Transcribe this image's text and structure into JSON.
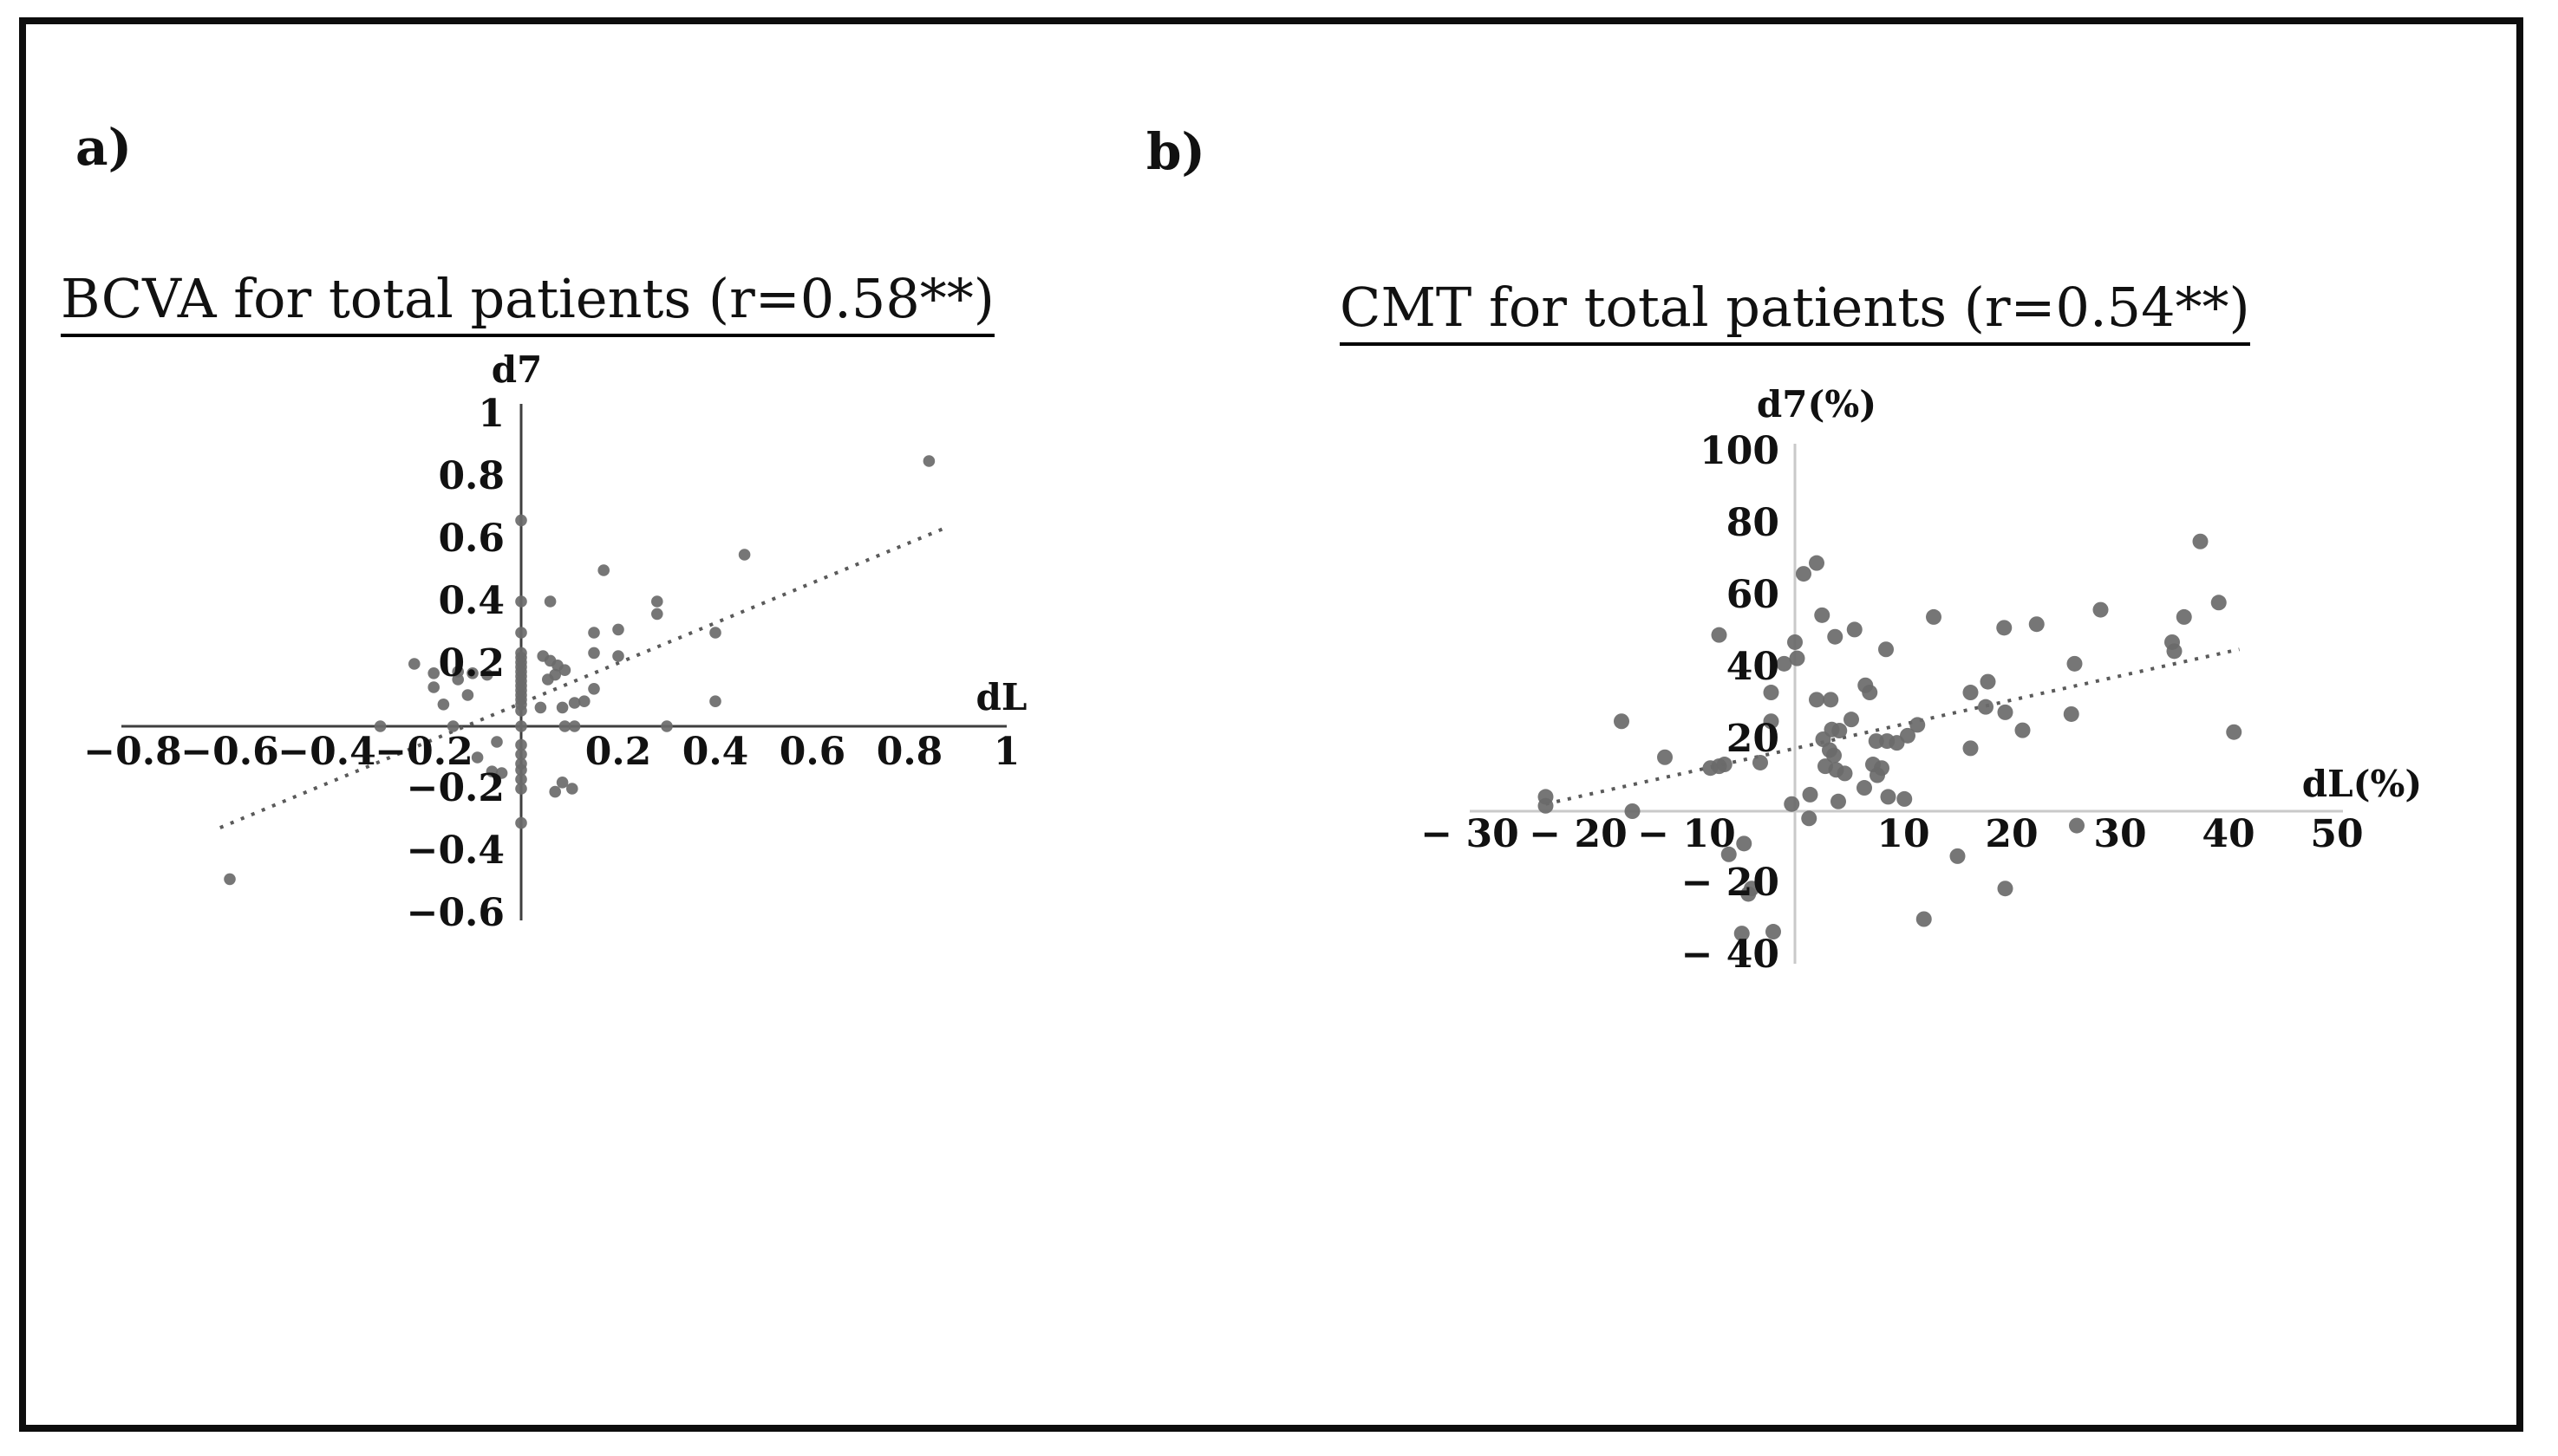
{
  "figure": {
    "background": "#ffffff",
    "border_color": "#0d0d0d"
  },
  "colors": {
    "point": "#6a6a6a",
    "trend": "#5a5a5a",
    "axis_a": "#3f3f3f",
    "axis_b": "#c9c9c9",
    "text": "#111111"
  },
  "chart_data": [
    {
      "type": "scatter",
      "panel_label": "a)",
      "title": "BCVA for total patients (r=0.58**)",
      "xlabel": "dL",
      "ylabel": "d7",
      "xlim": [
        -0.8,
        1
      ],
      "ylim": [
        -0.6,
        1
      ],
      "grid": false,
      "legend": "none",
      "x_ticks": [
        {
          "v": -0.8,
          "t": "−0.8"
        },
        {
          "v": -0.6,
          "t": "−0.6"
        },
        {
          "v": -0.4,
          "t": "−0.4"
        },
        {
          "v": -0.2,
          "t": "−0.2"
        },
        {
          "v": 0.2,
          "t": "0.2"
        },
        {
          "v": 0.4,
          "t": "0.4"
        },
        {
          "v": 0.6,
          "t": "0.6"
        },
        {
          "v": 0.8,
          "t": "0.8"
        },
        {
          "v": 1,
          "t": "1"
        }
      ],
      "y_ticks": [
        {
          "v": 1,
          "t": "1"
        },
        {
          "v": 0.8,
          "t": "0.8"
        },
        {
          "v": 0.6,
          "t": "0.6"
        },
        {
          "v": 0.4,
          "t": "0.4"
        },
        {
          "v": 0.2,
          "t": "0.2"
        },
        {
          "v": -0.2,
          "t": "−0.2"
        },
        {
          "v": -0.4,
          "t": "−0.4"
        },
        {
          "v": -0.6,
          "t": "−0.6"
        }
      ],
      "trendline": {
        "x1": -0.62,
        "y1": -0.325,
        "x2": 0.88,
        "y2": 0.64
      },
      "points": [
        [
          0.84,
          0.85
        ],
        [
          0.46,
          0.55
        ],
        [
          0.17,
          0.5
        ],
        [
          0.28,
          0.4
        ],
        [
          0.28,
          0.36
        ],
        [
          0.06,
          0.4
        ],
        [
          0.4,
          0.3
        ],
        [
          0.15,
          0.3
        ],
        [
          0.2,
          0.31
        ],
        [
          0.15,
          0.235
        ],
        [
          0.2,
          0.225
        ],
        [
          0.15,
          0.12
        ],
        [
          0.4,
          0.08
        ],
        [
          0.13,
          0.08
        ],
        [
          0.11,
          0.075
        ],
        [
          0.04,
          0.06
        ],
        [
          0.085,
          0.06
        ],
        [
          0.045,
          0.225
        ],
        [
          0.06,
          0.21
        ],
        [
          0.075,
          0.195
        ],
        [
          0.09,
          0.18
        ],
        [
          0.07,
          0.165
        ],
        [
          0.055,
          0.15
        ],
        [
          -0.22,
          0.2
        ],
        [
          -0.18,
          0.17
        ],
        [
          -0.13,
          0.175
        ],
        [
          -0.1,
          0.17
        ],
        [
          -0.07,
          0.165
        ],
        [
          -0.13,
          0.15
        ],
        [
          -0.18,
          0.125
        ],
        [
          -0.11,
          0.1
        ],
        [
          -0.16,
          0.07
        ],
        [
          0,
          0.66
        ],
        [
          0,
          0.4
        ],
        [
          0,
          0.3
        ],
        [
          0,
          0.235
        ],
        [
          0,
          0.22
        ],
        [
          0,
          0.205
        ],
        [
          0,
          0.19
        ],
        [
          0,
          0.175
        ],
        [
          0,
          0.16
        ],
        [
          0,
          0.145
        ],
        [
          0,
          0.13
        ],
        [
          0,
          0.115
        ],
        [
          0,
          0.1
        ],
        [
          0,
          0.085
        ],
        [
          0,
          0.07
        ],
        [
          0,
          0.05
        ],
        [
          -0.29,
          0
        ],
        [
          -0.14,
          0
        ],
        [
          0,
          0
        ],
        [
          0.09,
          0
        ],
        [
          0.11,
          0
        ],
        [
          0.3,
          0
        ],
        [
          -0.05,
          -0.05
        ],
        [
          -0.09,
          -0.1
        ],
        [
          -0.06,
          -0.145
        ],
        [
          -0.04,
          -0.15
        ],
        [
          0,
          -0.06
        ],
        [
          0,
          -0.09
        ],
        [
          0,
          -0.12
        ],
        [
          0,
          -0.14
        ],
        [
          0,
          -0.17
        ],
        [
          0,
          -0.2
        ],
        [
          0,
          -0.31
        ],
        [
          0.085,
          -0.18
        ],
        [
          0.105,
          -0.2
        ],
        [
          0.07,
          -0.21
        ],
        [
          -0.6,
          -0.49
        ]
      ]
    },
    {
      "type": "scatter",
      "panel_label": "b)",
      "title": "CMT for total patients (r=0.54**)",
      "xlabel": "dL(%)",
      "ylabel": "d7(%)",
      "xlim": [
        -30,
        50
      ],
      "ylim": [
        -40,
        100
      ],
      "grid": false,
      "legend": "none",
      "x_ticks": [
        {
          "v": -30,
          "t": "− 30"
        },
        {
          "v": -20,
          "t": "− 20"
        },
        {
          "v": -10,
          "t": "− 10"
        },
        {
          "v": 10,
          "t": "10"
        },
        {
          "v": 20,
          "t": "20"
        },
        {
          "v": 30,
          "t": "30"
        },
        {
          "v": 40,
          "t": "40"
        },
        {
          "v": 50,
          "t": "50"
        }
      ],
      "y_ticks": [
        {
          "v": 100,
          "t": "100"
        },
        {
          "v": 80,
          "t": "80"
        },
        {
          "v": 60,
          "t": "60"
        },
        {
          "v": 40,
          "t": "40"
        },
        {
          "v": 20,
          "t": "20"
        },
        {
          "v": -20,
          "t": "− 20"
        },
        {
          "v": -40,
          "t": "− 40"
        }
      ],
      "trendline": {
        "x1": -23,
        "y1": 2,
        "x2": 41,
        "y2": 45
      },
      "points": [
        [
          -23,
          4
        ],
        [
          -23,
          1.5
        ],
        [
          -16,
          25
        ],
        [
          -15,
          0
        ],
        [
          -12,
          15
        ],
        [
          -7,
          49
        ],
        [
          -7.8,
          12
        ],
        [
          -7,
          12.5
        ],
        [
          -6.5,
          13
        ],
        [
          -4.7,
          -9
        ],
        [
          -6.1,
          -12
        ],
        [
          -4,
          -21.5
        ],
        [
          -4.3,
          -23
        ],
        [
          -4.9,
          -34
        ],
        [
          -2,
          -33.5
        ],
        [
          -3.2,
          13.5
        ],
        [
          -2.2,
          33
        ],
        [
          -2.2,
          25
        ],
        [
          0,
          47
        ],
        [
          0.2,
          42.5
        ],
        [
          -1,
          41
        ],
        [
          0.8,
          66
        ],
        [
          2,
          69
        ],
        [
          2.5,
          54.5
        ],
        [
          3.7,
          48.5
        ],
        [
          5.5,
          50.5
        ],
        [
          2,
          31
        ],
        [
          3.3,
          31
        ],
        [
          6.5,
          35
        ],
        [
          6.9,
          33
        ],
        [
          5.2,
          25.5
        ],
        [
          3.4,
          22.7
        ],
        [
          4.1,
          22.4
        ],
        [
          2.6,
          20
        ],
        [
          3.2,
          17
        ],
        [
          3.6,
          15.5
        ],
        [
          2.8,
          12.5
        ],
        [
          3.8,
          11.5
        ],
        [
          4.6,
          10.5
        ],
        [
          7.5,
          19.5
        ],
        [
          8.5,
          19.5
        ],
        [
          9.4,
          19
        ],
        [
          7.2,
          13
        ],
        [
          8,
          12
        ],
        [
          7.6,
          10
        ],
        [
          6.4,
          6.5
        ],
        [
          8.6,
          4
        ],
        [
          1.4,
          4.6
        ],
        [
          4,
          2.7
        ],
        [
          -0.3,
          2
        ],
        [
          1.3,
          -2
        ],
        [
          10.1,
          3.4
        ],
        [
          8.4,
          45
        ],
        [
          12.8,
          54
        ],
        [
          11.3,
          24
        ],
        [
          10.4,
          21
        ],
        [
          15,
          -12.5
        ],
        [
          16.2,
          17.5
        ],
        [
          16.2,
          33
        ],
        [
          17.6,
          29
        ],
        [
          19.4,
          27.5
        ],
        [
          21,
          22.5
        ],
        [
          17.8,
          36
        ],
        [
          19.3,
          51
        ],
        [
          19.4,
          -21.5
        ],
        [
          22.3,
          52
        ],
        [
          25.8,
          41
        ],
        [
          26,
          -4
        ],
        [
          25.5,
          27
        ],
        [
          28.2,
          56
        ],
        [
          34.8,
          47
        ],
        [
          35,
          44.5
        ],
        [
          35.9,
          54
        ],
        [
          37.4,
          75
        ],
        [
          39.1,
          58
        ],
        [
          40.5,
          22
        ],
        [
          11.9,
          -30
        ]
      ]
    }
  ]
}
